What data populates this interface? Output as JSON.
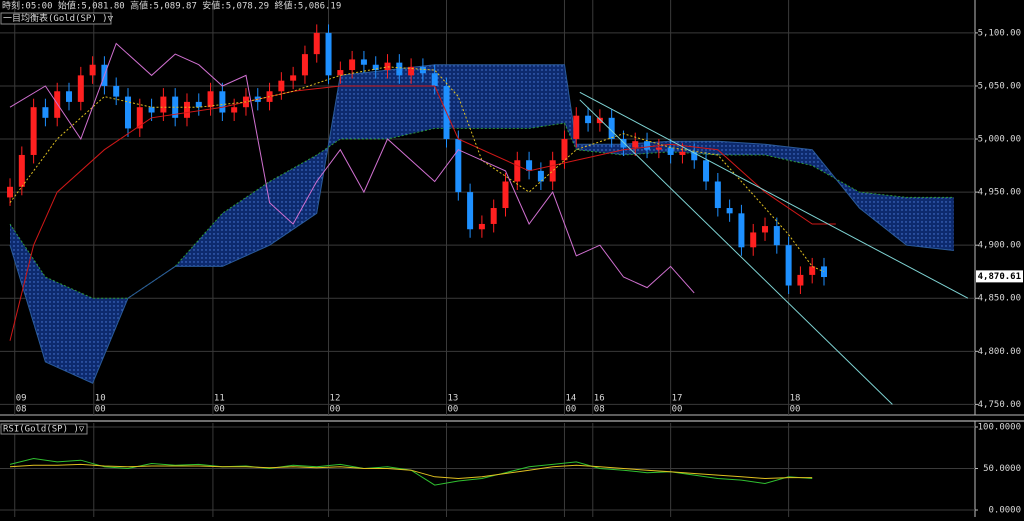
{
  "header": "時刻:05:00 始値:5,081.80 高値:5,089.87 安値:5,078.29 終値:5,086.19",
  "chart_data": [
    {
      "type": "candlestick",
      "title": "一目均衡表(Gold(SP) )▽",
      "up_color": "#ff2020",
      "down_color": "#1e90ff",
      "grid": true,
      "xlim": [
        -0.85,
        81.8
      ],
      "ylim": [
        4740,
        5131
      ],
      "yticks": [
        {
          "value": 5100,
          "label": "5,100.00"
        },
        {
          "value": 5050,
          "label": "5,050.00"
        },
        {
          "value": 5000,
          "label": "5,000.00"
        },
        {
          "value": 4950,
          "label": "4,950.00"
        },
        {
          "value": 4900,
          "label": "4,900.00"
        },
        {
          "value": 4850,
          "label": "4,850.00"
        },
        {
          "value": 4800,
          "label": "4,800.00"
        },
        {
          "value": 4750,
          "label": "4,750.00"
        }
      ],
      "xticks": [
        {
          "value": 0.4,
          "label": "09"
        },
        {
          "value": 7.1,
          "label": "10"
        },
        {
          "value": 17.2,
          "label": "11"
        },
        {
          "value": 27,
          "label": "12"
        },
        {
          "value": 37,
          "label": "13"
        },
        {
          "value": 47,
          "label": "14"
        },
        {
          "value": 49.4,
          "label": "16"
        },
        {
          "value": 56,
          "label": "17"
        },
        {
          "value": 66,
          "label": "18"
        }
      ],
      "xticks_sub": [
        "08",
        "00",
        "00",
        "00",
        "00",
        "00",
        "08",
        "00",
        "00"
      ],
      "last_price": {
        "value": 4870.61,
        "label": "4,870.61"
      },
      "open": [
        4945,
        4955,
        4985,
        5030,
        5020,
        5045,
        5035,
        5060,
        5070,
        5050,
        5040,
        5010,
        5030,
        5025,
        5040,
        5020,
        5035,
        5030,
        5045,
        5025,
        5030,
        5040,
        5035,
        5045,
        5055,
        5060,
        5080,
        5100,
        5060,
        5065,
        5075,
        5070,
        5065,
        5072,
        5060,
        5068,
        5062,
        5050,
        5000,
        4950,
        4915,
        4920,
        4935,
        4960,
        4980,
        4970,
        4960,
        4980,
        5000,
        5022,
        5015,
        5020,
        5000,
        4992,
        4998,
        4990,
        4992,
        4985,
        4988,
        4980,
        4960,
        4935,
        4930,
        4898,
        4912,
        4918,
        4900,
        4862,
        4872,
        4880
      ],
      "high": [
        4963,
        4993,
        5038,
        5038,
        5053,
        5053,
        5068,
        5078,
        5078,
        5058,
        5048,
        5038,
        5038,
        5048,
        5048,
        5043,
        5043,
        5053,
        5053,
        5038,
        5048,
        5048,
        5053,
        5063,
        5068,
        5088,
        5108,
        5108,
        5073,
        5083,
        5083,
        5078,
        5080,
        5080,
        5076,
        5076,
        5070,
        5058,
        5008,
        4958,
        4928,
        4943,
        4968,
        4988,
        4988,
        4978,
        4988,
        5008,
        5030,
        5030,
        5028,
        5028,
        5008,
        5006,
        5006,
        5000,
        5000,
        4996,
        4996,
        4988,
        4968,
        4943,
        4938,
        4920,
        4926,
        4926,
        4908,
        4880,
        4888,
        4888
      ],
      "low": [
        4937,
        4947,
        4977,
        5012,
        5012,
        5027,
        5027,
        5052,
        5042,
        5032,
        5002,
        5002,
        5017,
        5017,
        5012,
        5012,
        5022,
        5022,
        5017,
        5017,
        5022,
        5027,
        5027,
        5037,
        5047,
        5052,
        5072,
        5052,
        5052,
        5057,
        5062,
        5057,
        5057,
        5052,
        5052,
        5054,
        5042,
        4992,
        4942,
        4907,
        4907,
        4912,
        4927,
        4952,
        4962,
        4952,
        4952,
        4972,
        4992,
        5007,
        5007,
        4992,
        4984,
        4984,
        4982,
        4982,
        4977,
        4977,
        4972,
        4952,
        4927,
        4922,
        4890,
        4890,
        4904,
        4892,
        4854,
        4854,
        4864,
        4862
      ],
      "close": [
        4955,
        4985,
        5030,
        5020,
        5045,
        5035,
        5060,
        5070,
        5050,
        5040,
        5010,
        5030,
        5025,
        5040,
        5020,
        5035,
        5030,
        5045,
        5025,
        5030,
        5040,
        5035,
        5045,
        5055,
        5060,
        5080,
        5100,
        5060,
        5065,
        5075,
        5070,
        5065,
        5072,
        5060,
        5068,
        5062,
        5050,
        5000,
        4950,
        4915,
        4920,
        4935,
        4960,
        4980,
        4970,
        4960,
        4980,
        5000,
        5022,
        5015,
        5020,
        5000,
        4992,
        4998,
        4990,
        4992,
        4985,
        4988,
        4980,
        4960,
        4935,
        4930,
        4898,
        4912,
        4918,
        4900,
        4862,
        4872,
        4880,
        4870
      ],
      "cloud": {
        "color": "#0d2a6e",
        "dot_color": "#4f7fe0",
        "x": [
          0,
          3,
          7,
          10,
          14,
          18,
          22,
          26,
          28,
          32,
          36,
          40,
          44,
          47,
          48,
          52,
          56,
          60,
          64,
          68,
          72,
          76,
          80
        ],
        "span_a": [
          4920,
          4870,
          4850,
          4850,
          4880,
          4930,
          4960,
          4985,
          5000,
          5000,
          5010,
          5010,
          5010,
          5015,
          4990,
          4985,
          4988,
          4985,
          4985,
          4975,
          4950,
          4945,
          4945
        ],
        "span_b": [
          4900,
          4790,
          4770,
          4850,
          4880,
          4880,
          4900,
          4930,
          5060,
          5065,
          5070,
          5070,
          5070,
          5070,
          4995,
          4995,
          4998,
          4998,
          4995,
          4990,
          4935,
          4900,
          4895
        ],
        "span_a_color": "#2e9a3a",
        "span_b_color": "#2a5a9a"
      },
      "lines": [
        {
          "color": "#d01818",
          "dash": false,
          "x": [
            0,
            2,
            4,
            8,
            12,
            18,
            24,
            28,
            36,
            38,
            44,
            48,
            52,
            56,
            60,
            64,
            68,
            70
          ],
          "values": [
            4810,
            4900,
            4950,
            4990,
            5020,
            5030,
            5045,
            5050,
            5050,
            5000,
            4970,
            4980,
            4990,
            4995,
            4990,
            4950,
            4920,
            4920
          ]
        },
        {
          "color": "#e0c020",
          "dash": true,
          "x": [
            0,
            4,
            8,
            12,
            16,
            20,
            24,
            28,
            32,
            36,
            38,
            40,
            44,
            48,
            52,
            56,
            60,
            64,
            66,
            68,
            69
          ],
          "values": [
            4940,
            5000,
            5040,
            5030,
            5030,
            5035,
            5045,
            5060,
            5068,
            5065,
            5040,
            4980,
            4950,
            4990,
            5005,
            4992,
            4985,
            4935,
            4910,
            4880,
            4875
          ]
        },
        {
          "color": "#d070d0",
          "dash": false,
          "x": [
            0,
            3,
            6,
            9,
            12,
            14,
            16,
            18,
            20,
            22,
            24,
            26,
            28,
            30,
            32,
            34,
            36,
            38,
            40,
            42,
            44,
            46,
            48,
            50,
            52,
            54,
            56,
            58
          ],
          "values": [
            5030,
            5050,
            5000,
            5090,
            5060,
            5080,
            5070,
            5050,
            5060,
            4940,
            4920,
            4960,
            4990,
            4950,
            5000,
            4980,
            4960,
            4990,
            4980,
            4970,
            4920,
            4950,
            4890,
            4900,
            4870,
            4860,
            4880,
            4855
          ]
        }
      ],
      "trendlines": {
        "color": "#7fd4d4",
        "lines": [
          {
            "x": [
              48.3,
              81.2
            ],
            "values": [
              5044,
              4850
            ]
          },
          {
            "x": [
              48.3,
              74.8
            ],
            "values": [
              5037,
              4750
            ]
          }
        ]
      }
    },
    {
      "type": "line",
      "title": "RSI(Gold(SP) )▽",
      "grid": true,
      "xlim": [
        -0.85,
        81.8
      ],
      "ylim": [
        -8.4,
        104.8
      ],
      "yticks": [
        {
          "value": 100,
          "label": "100.0000"
        },
        {
          "value": 50,
          "label": "50.0000"
        },
        {
          "value": 0,
          "label": "0.0000"
        }
      ],
      "series": [
        {
          "color": "#30c030",
          "x": [
            0,
            2,
            4,
            6,
            8,
            10,
            12,
            14,
            16,
            18,
            20,
            22,
            24,
            26,
            28,
            30,
            32,
            34,
            36,
            38,
            40,
            42,
            44,
            46,
            48,
            50,
            52,
            54,
            56,
            58,
            60,
            62,
            64,
            66,
            68
          ],
          "values": [
            55,
            62,
            58,
            60,
            52,
            50,
            56,
            54,
            55,
            52,
            53,
            50,
            54,
            52,
            55,
            50,
            52,
            48,
            30,
            35,
            38,
            45,
            52,
            55,
            58,
            50,
            48,
            45,
            46,
            42,
            38,
            36,
            32,
            40,
            38
          ]
        },
        {
          "color": "#e0c020",
          "x": [
            0,
            2,
            4,
            6,
            8,
            10,
            12,
            14,
            16,
            18,
            20,
            22,
            24,
            26,
            28,
            30,
            32,
            34,
            36,
            38,
            40,
            42,
            44,
            46,
            48,
            50,
            52,
            54,
            56,
            58,
            60,
            62,
            64,
            66,
            68
          ],
          "values": [
            52,
            54,
            54,
            55,
            53,
            52,
            53,
            53,
            53,
            52,
            52,
            51,
            52,
            51,
            52,
            50,
            50,
            48,
            40,
            38,
            40,
            44,
            48,
            52,
            54,
            52,
            50,
            48,
            46,
            44,
            42,
            40,
            38,
            39,
            39
          ]
        }
      ]
    }
  ]
}
